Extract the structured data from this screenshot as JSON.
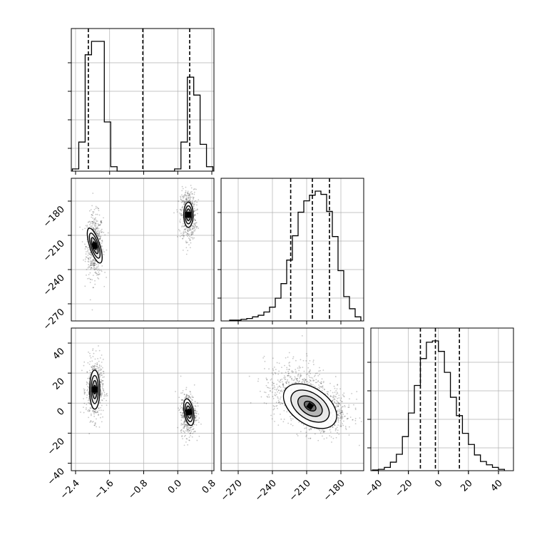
{
  "chart_data": {
    "type": "corner",
    "parameters": [
      {
        "label": "",
        "range": [
          -2.5,
          0.85
        ],
        "quantiles": [
          -2.1,
          -0.82,
          0.28
        ],
        "hist_ticks": [
          -2.4,
          -1.6,
          -0.8,
          0.0,
          0.8
        ],
        "hist_x": [
          -2.4,
          -2.25,
          -2.1,
          -1.95,
          -1.8,
          -1.65,
          -1.5,
          -1.35,
          -1.2,
          -1.05,
          -0.9,
          -0.75,
          -0.6,
          -0.45,
          -0.3,
          -0.15,
          0.0,
          0.15,
          0.3,
          0.45,
          0.6,
          0.75
        ],
        "hist_y": [
          1,
          13,
          52,
          58,
          58,
          22,
          2,
          0,
          0,
          0,
          0,
          0,
          0,
          0,
          0,
          0,
          1,
          13,
          42,
          34,
          12,
          2
        ]
      },
      {
        "label": "",
        "range": [
          -285,
          -160
        ],
        "quantiles": [
          -224,
          -205,
          -190
        ],
        "ticks": [
          -270,
          -240,
          -210,
          -180
        ],
        "hist_x": [
          -275,
          -270,
          -265,
          -260,
          -255,
          -250,
          -245,
          -240,
          -235,
          -230,
          -225,
          -220,
          -215,
          -210,
          -205,
          -200,
          -195,
          -190,
          -185,
          -180,
          -175,
          -170,
          -165
        ],
        "hist_y": [
          1,
          1,
          2,
          3,
          5,
          7,
          11,
          17,
          28,
          46,
          75,
          105,
          134,
          148,
          155,
          160,
          156,
          135,
          104,
          62,
          30,
          15,
          5
        ]
      },
      {
        "label": "",
        "range": [
          -45,
          50
        ],
        "quantiles": [
          -12,
          -2,
          14
        ],
        "ticks": [
          -40,
          -20,
          0,
          20,
          40
        ],
        "hist_x": [
          -42,
          -38,
          -34,
          -30,
          -26,
          -22,
          -18,
          -14,
          -10,
          -6,
          -2,
          2,
          6,
          10,
          14,
          18,
          22,
          26,
          30,
          34,
          38,
          42
        ],
        "hist_y": [
          1,
          2,
          5,
          13,
          25,
          52,
          88,
          130,
          171,
          196,
          198,
          182,
          150,
          112,
          84,
          57,
          40,
          24,
          14,
          9,
          5,
          2
        ]
      }
    ],
    "grid": true,
    "samples": {
      "clusters": [
        {
          "a": -1.95,
          "b": -219,
          "c": 9,
          "sa": 0.1,
          "sb": 14,
          "sc": 10,
          "weight": 0.5
        },
        {
          "a": 0.25,
          "b": -192,
          "c": -7,
          "sa": 0.09,
          "sb": 11,
          "sc": 7,
          "weight": 0.5
        }
      ],
      "count_per_panel": 1100
    },
    "contours_2d": {
      "p10": [
        {
          "center": [
            -1.95,
            -219
          ],
          "rx": 0.12,
          "ry": 16,
          "rotate": -18
        },
        {
          "center": [
            0.25,
            -192
          ],
          "rx": 0.11,
          "ry": 11,
          "rotate": 0
        }
      ],
      "p20": [
        {
          "center": [
            -1.95,
            9
          ],
          "rx": 0.12,
          "ry": 13,
          "rotate": 0
        },
        {
          "center": [
            0.26,
            -6
          ],
          "rx": 0.11,
          "ry": 9,
          "rotate": -10
        }
      ],
      "p21": [
        {
          "center": [
            -207,
            -2
          ],
          "rx": 26,
          "ry": 12,
          "rotate": 34
        }
      ]
    }
  }
}
